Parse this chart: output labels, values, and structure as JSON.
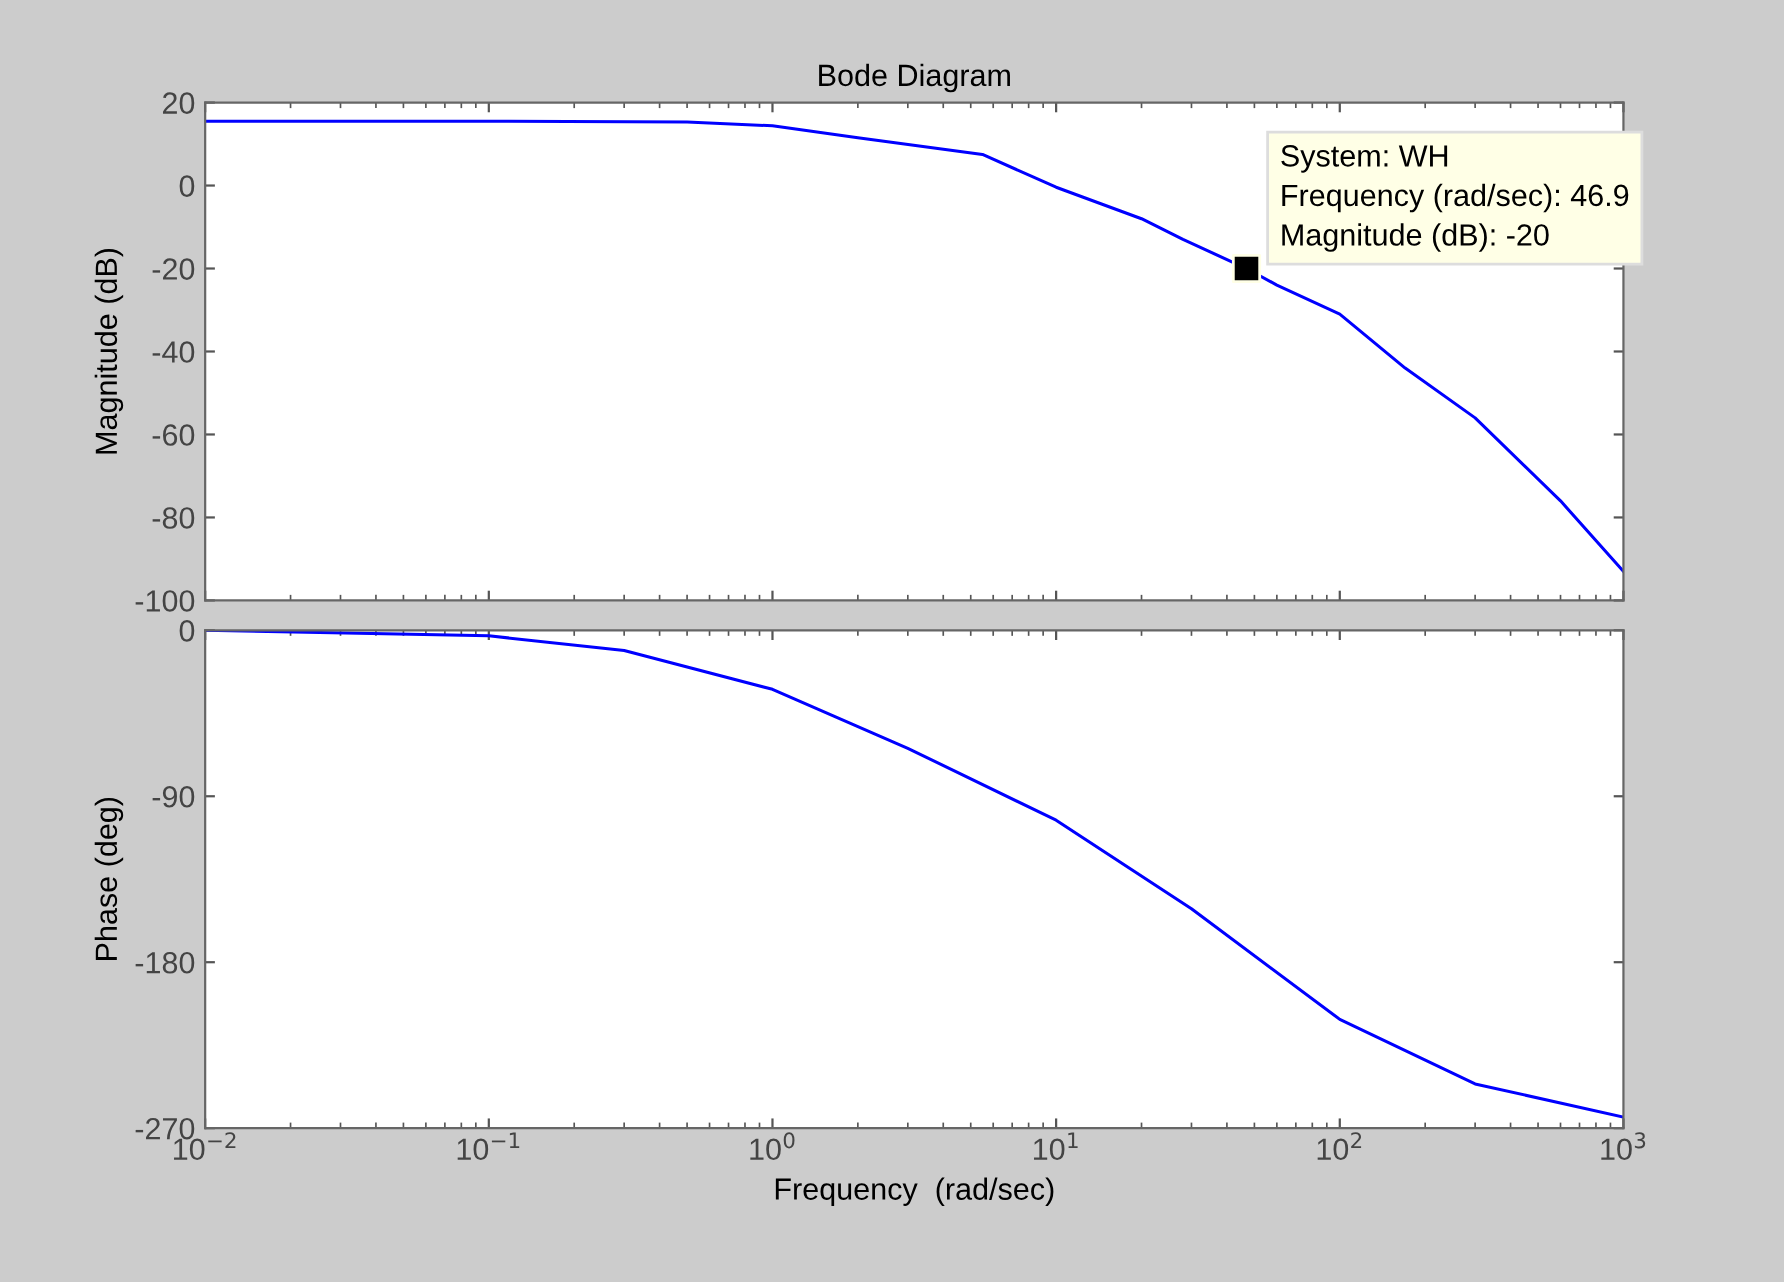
{
  "chart_data": [
    {
      "type": "line",
      "title": "Bode Diagram",
      "ylabel": "Magnitude (dB)",
      "log": "x",
      "grid": false,
      "legend": false,
      "tick_labels": "y",
      "xlim": [
        0.01,
        1000
      ],
      "xticks": [
        {
          "value": 0.01,
          "label": null
        },
        {
          "value": 0.1,
          "label": null
        },
        {
          "value": 1,
          "label": null
        },
        {
          "value": 10,
          "label": null
        },
        {
          "value": 100,
          "label": null
        },
        {
          "value": 1000,
          "label": null
        }
      ],
      "ylim": [
        -100,
        20
      ],
      "yticks": [
        -100,
        -80,
        -60,
        -40,
        -20,
        0,
        20
      ],
      "series": [
        {
          "color": "#0000ff",
          "marker": "none",
          "x": [
            0.01,
            0.1,
            0.5,
            1,
            2,
            5.5,
            10,
            20,
            28,
            46.9,
            60,
            100,
            170,
            300,
            600,
            1000
          ],
          "values": [
            15.5,
            15.5,
            15.3,
            14.4,
            11.5,
            7.5,
            -0.4,
            -8,
            -13,
            -20,
            -24,
            -31,
            -44,
            -56,
            -76,
            -93
          ]
        },
        {
          "type": "scatter",
          "color": "#000000",
          "marker": "square",
          "x": [
            46.9
          ],
          "values": [
            -20
          ]
        }
      ],
      "annotations": [
        {
          "text": "System: WH\nFrequency (rad/sec): 46.9\nMagnitude (dB): -20",
          "x": 46.9,
          "y": -20
        }
      ]
    },
    {
      "type": "line",
      "xlabel": "Frequency  (rad/sec)",
      "ylabel": "Phase (deg)",
      "log": "x",
      "grid": false,
      "legend": false,
      "xlim": [
        0.01,
        1000
      ],
      "xticks": [
        {
          "value": 0.01,
          "label": "10$^{−2}$"
        },
        {
          "value": 0.1,
          "label": "10$^{−1}$"
        },
        {
          "value": 1,
          "label": "10$^{0}$"
        },
        {
          "value": 10,
          "label": "10$^{1}$"
        },
        {
          "value": 100,
          "label": "10$^{2}$"
        },
        {
          "value": 1000,
          "label": "10$^{3}$"
        }
      ],
      "ylim": [
        -270,
        0
      ],
      "yticks": [
        -270,
        -180,
        -90,
        0
      ],
      "series": [
        {
          "color": "#0000ff",
          "marker": "none",
          "x": [
            0.01,
            0.1,
            0.3,
            1,
            3,
            10,
            30,
            100,
            300,
            1000
          ],
          "values": [
            0,
            -3,
            -11,
            -32,
            -64,
            -103,
            -151,
            -211,
            -246,
            -264
          ]
        }
      ]
    }
  ]
}
